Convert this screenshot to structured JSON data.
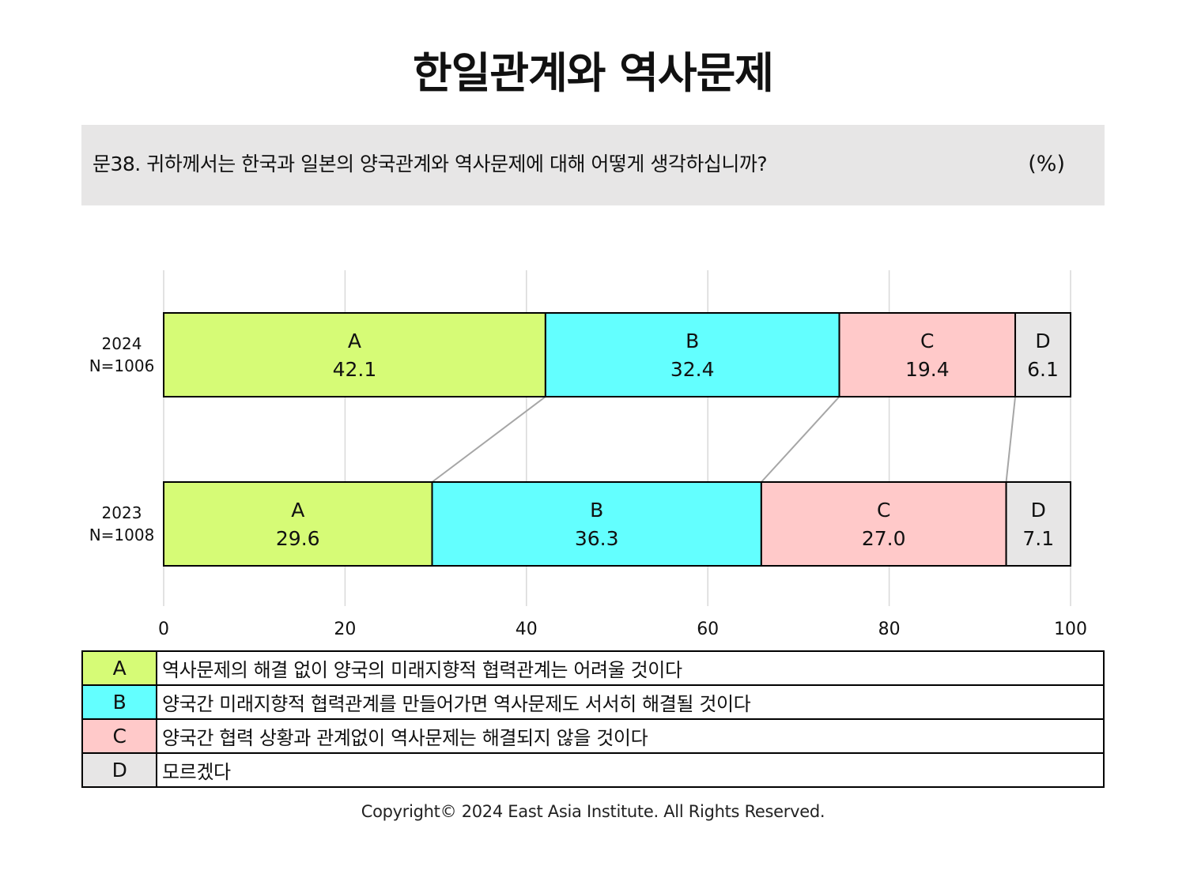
{
  "title": "한일관계와 역사문제",
  "question": "문38. 귀하께서는 한국과 일본의 양국관계와 역사문제에 대해 어떻게 생각하십니까?",
  "unit": "(%)",
  "colors": {
    "A": "#d6fb76",
    "B": "#63ffff",
    "C": "#ffc9c9",
    "D": "#e7e6e6",
    "grid": "#d9d9d9",
    "connector": "#a6a6a6"
  },
  "chart_data": {
    "type": "bar",
    "orientation": "horizontal",
    "stacked": true,
    "xlim": [
      0,
      100
    ],
    "xticks": [
      0,
      20,
      40,
      60,
      80,
      100
    ],
    "grid": true,
    "rows": [
      {
        "label": "2024",
        "n": "N=1006"
      },
      {
        "label": "2023",
        "n": "N=1008"
      }
    ],
    "series": [
      {
        "name": "A",
        "values": [
          42.1,
          29.6
        ]
      },
      {
        "name": "B",
        "values": [
          32.4,
          36.3
        ]
      },
      {
        "name": "C",
        "values": [
          19.4,
          27.0
        ]
      },
      {
        "name": "D",
        "values": [
          6.1,
          7.1
        ]
      }
    ]
  },
  "legend": [
    {
      "key": "A",
      "text": "역사문제의 해결 없이 양국의 미래지향적 협력관계는 어려울 것이다"
    },
    {
      "key": "B",
      "text": "양국간 미래지향적 협력관계를 만들어가면 역사문제도 서서히 해결될 것이다"
    },
    {
      "key": "C",
      "text": "양국간 협력 상황과 관계없이 역사문제는 해결되지 않을 것이다"
    },
    {
      "key": "D",
      "text": "모르겠다"
    }
  ],
  "copyright": "Copyright© 2024 East Asia Institute. All Rights Reserved."
}
